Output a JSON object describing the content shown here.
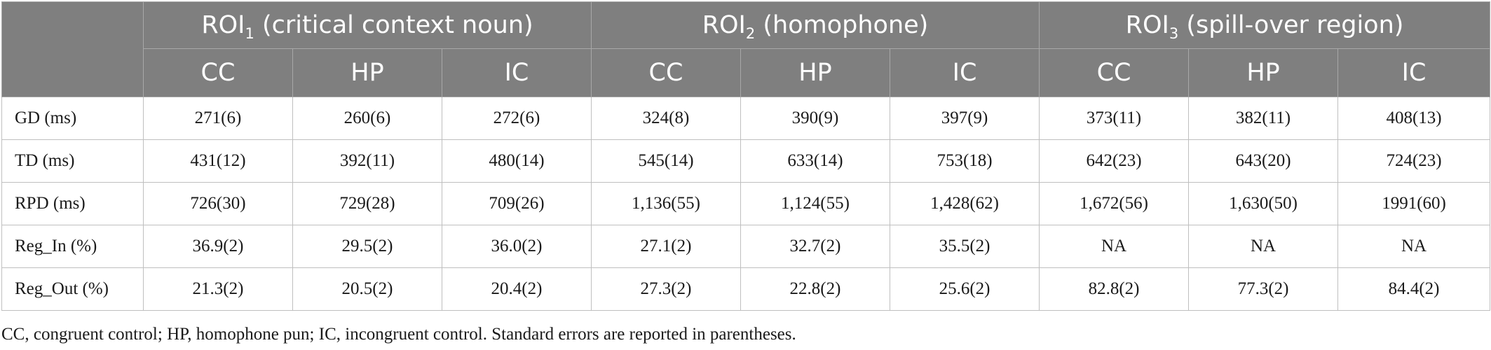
{
  "groups": [
    {
      "pre": "ROI",
      "sub": "1",
      "post": " (critical context noun)"
    },
    {
      "pre": "ROI",
      "sub": "2",
      "post": " (homophone)"
    },
    {
      "pre": "ROI",
      "sub": "3",
      "post": " (spill-over region)"
    }
  ],
  "subheaders": [
    "CC",
    "HP",
    "IC",
    "CC",
    "HP",
    "IC",
    "CC",
    "HP",
    "IC"
  ],
  "rows": [
    {
      "label": "GD (ms)",
      "cells": [
        "271(6)",
        "260(6)",
        "272(6)",
        "324(8)",
        "390(9)",
        "397(9)",
        "373(11)",
        "382(11)",
        "408(13)"
      ]
    },
    {
      "label": "TD (ms)",
      "cells": [
        "431(12)",
        "392(11)",
        "480(14)",
        "545(14)",
        "633(14)",
        "753(18)",
        "642(23)",
        "643(20)",
        "724(23)"
      ]
    },
    {
      "label": "RPD (ms)",
      "cells": [
        "726(30)",
        "729(28)",
        "709(26)",
        "1,136(55)",
        "1,124(55)",
        "1,428(62)",
        "1,672(56)",
        "1,630(50)",
        "1991(60)"
      ]
    },
    {
      "label": "Reg_In (%)",
      "cells": [
        "36.9(2)",
        "29.5(2)",
        "36.0(2)",
        "27.1(2)",
        "32.7(2)",
        "35.5(2)",
        "NA",
        "NA",
        "NA"
      ]
    },
    {
      "label": "Reg_Out (%)",
      "cells": [
        "21.3(2)",
        "20.5(2)",
        "20.4(2)",
        "27.3(2)",
        "22.8(2)",
        "25.6(2)",
        "82.8(2)",
        "77.3(2)",
        "84.4(2)"
      ]
    }
  ],
  "footnote": "CC, congruent control; HP, homophone pun; IC, incongruent control. Standard errors are reported in parentheses."
}
